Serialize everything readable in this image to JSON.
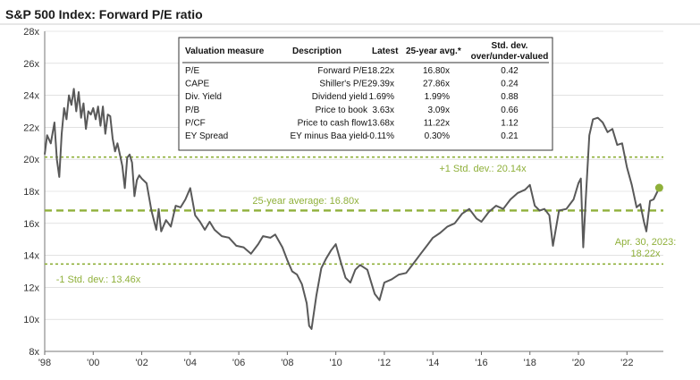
{
  "title": "S&P 500 Index: Forward P/E ratio",
  "colors": {
    "line": "#595959",
    "accent": "#8fb03a",
    "grid": "#d0d0d0"
  },
  "table": {
    "headers": [
      "Valuation measure",
      "Description",
      "Latest",
      "25-year avg.*",
      "Std. dev.",
      "over/under-valued"
    ],
    "rows": [
      [
        "P/E",
        "Forward P/E",
        "18.22x",
        "16.80x",
        "0.42"
      ],
      [
        "CAPE",
        "Shiller's P/E",
        "29.39x",
        "27.86x",
        "0.24"
      ],
      [
        "Div. Yield",
        "Dividend yield",
        "1.69%",
        "1.99%",
        "0.88"
      ],
      [
        "P/B",
        "Price to book",
        "3.63x",
        "3.09x",
        "0.66"
      ],
      [
        "P/CF",
        "Price to cash flow",
        "13.68x",
        "11.22x",
        "1.12"
      ],
      [
        "EY Spread",
        "EY minus Baa yield",
        "-0.11%",
        "0.30%",
        "0.21"
      ]
    ]
  },
  "annotations": {
    "plus_std": "+1 Std. dev.: 20.14x",
    "average": "25-year average: 16.80x",
    "minus_std": "-1 Std. dev.: 13.46x",
    "latest_date": "Apr. 30, 2023:",
    "latest_value": "18.22x"
  },
  "chart_data": {
    "type": "line",
    "title": "S&P 500 Index: Forward P/E ratio",
    "xlabel": "",
    "ylabel": "",
    "xlim": [
      1998,
      2023.5
    ],
    "ylim": [
      8,
      28
    ],
    "x_ticks": [
      1998,
      2000,
      2002,
      2004,
      2006,
      2008,
      2010,
      2012,
      2014,
      2016,
      2018,
      2020,
      2022
    ],
    "x_tick_labels": [
      "'98",
      "'00",
      "'02",
      "'04",
      "'06",
      "'08",
      "'10",
      "'12",
      "'14",
      "'16",
      "'18",
      "'20",
      "'22"
    ],
    "y_ticks": [
      8,
      10,
      12,
      14,
      16,
      18,
      20,
      22,
      24,
      26,
      28
    ],
    "y_tick_labels": [
      "8x",
      "10x",
      "12x",
      "14x",
      "16x",
      "18x",
      "20x",
      "22x",
      "24x",
      "26x",
      "28x"
    ],
    "reference_lines": [
      {
        "name": "+1 Std. dev.",
        "value": 20.14
      },
      {
        "name": "25-year average",
        "value": 16.8
      },
      {
        "name": "-1 Std. dev.",
        "value": 13.46
      }
    ],
    "series": [
      {
        "name": "Forward P/E",
        "x": [
          1998.0,
          1998.1,
          1998.25,
          1998.4,
          1998.5,
          1998.6,
          1998.7,
          1998.8,
          1998.9,
          1999.0,
          1999.1,
          1999.2,
          1999.3,
          1999.4,
          1999.5,
          1999.6,
          1999.7,
          1999.8,
          1999.9,
          2000.0,
          2000.1,
          2000.2,
          2000.3,
          2000.4,
          2000.5,
          2000.6,
          2000.7,
          2000.8,
          2000.9,
          2001.0,
          2001.1,
          2001.2,
          2001.3,
          2001.4,
          2001.5,
          2001.6,
          2001.7,
          2001.8,
          2001.9,
          2002.0,
          2002.2,
          2002.4,
          2002.6,
          2002.7,
          2002.8,
          2003.0,
          2003.2,
          2003.4,
          2003.6,
          2003.8,
          2004.0,
          2004.2,
          2004.4,
          2004.6,
          2004.8,
          2005.0,
          2005.3,
          2005.6,
          2005.9,
          2006.2,
          2006.5,
          2006.8,
          2007.0,
          2007.3,
          2007.5,
          2007.8,
          2008.0,
          2008.2,
          2008.4,
          2008.6,
          2008.8,
          2008.9,
          2009.0,
          2009.2,
          2009.4,
          2009.6,
          2009.8,
          2010.0,
          2010.2,
          2010.4,
          2010.6,
          2010.8,
          2011.0,
          2011.3,
          2011.6,
          2011.8,
          2012.0,
          2012.3,
          2012.6,
          2012.9,
          2013.2,
          2013.5,
          2013.8,
          2014.0,
          2014.3,
          2014.6,
          2014.9,
          2015.2,
          2015.5,
          2015.8,
          2016.0,
          2016.3,
          2016.6,
          2016.9,
          2017.2,
          2017.5,
          2017.8,
          2018.0,
          2018.2,
          2018.4,
          2018.6,
          2018.8,
          2018.95,
          2019.2,
          2019.5,
          2019.8,
          2020.0,
          2020.1,
          2020.2,
          2020.3,
          2020.45,
          2020.6,
          2020.8,
          2021.0,
          2021.2,
          2021.4,
          2021.6,
          2021.8,
          2022.0,
          2022.2,
          2022.4,
          2022.55,
          2022.7,
          2022.8,
          2022.95,
          2023.1,
          2023.33
        ],
        "values": [
          20.3,
          21.5,
          21.0,
          22.3,
          20.0,
          18.9,
          21.6,
          23.2,
          22.5,
          24.0,
          23.4,
          24.4,
          23.0,
          24.2,
          22.6,
          23.5,
          21.9,
          23.0,
          22.8,
          23.2,
          22.5,
          23.3,
          22.1,
          23.3,
          21.6,
          22.8,
          22.7,
          21.3,
          20.5,
          21.0,
          20.3,
          19.6,
          18.2,
          20.1,
          20.3,
          19.8,
          17.7,
          18.7,
          19.0,
          18.8,
          18.5,
          16.8,
          15.6,
          16.9,
          15.5,
          16.2,
          15.8,
          17.1,
          17.0,
          17.5,
          18.2,
          16.5,
          16.1,
          15.6,
          16.1,
          15.6,
          15.2,
          15.1,
          14.6,
          14.5,
          14.1,
          14.7,
          15.2,
          15.1,
          15.3,
          14.5,
          13.7,
          13.0,
          12.8,
          12.2,
          11.0,
          9.6,
          9.4,
          11.5,
          13.2,
          13.8,
          14.3,
          14.7,
          13.6,
          12.6,
          12.3,
          13.1,
          13.4,
          13.1,
          11.6,
          11.2,
          12.3,
          12.5,
          12.8,
          12.9,
          13.5,
          14.1,
          14.7,
          15.1,
          15.4,
          15.8,
          16.0,
          16.6,
          16.9,
          16.3,
          16.1,
          16.7,
          17.1,
          16.9,
          17.5,
          17.9,
          18.1,
          18.4,
          17.1,
          16.8,
          16.9,
          16.5,
          14.6,
          16.8,
          16.9,
          17.5,
          18.5,
          18.8,
          14.5,
          17.5,
          21.5,
          22.5,
          22.6,
          22.3,
          21.7,
          21.9,
          20.9,
          21.0,
          19.5,
          18.4,
          17.0,
          17.2,
          16.1,
          15.5,
          17.4,
          17.5,
          18.22
        ]
      }
    ]
  }
}
